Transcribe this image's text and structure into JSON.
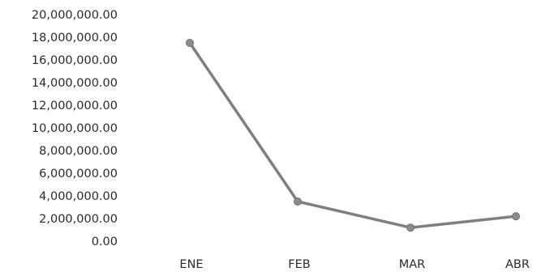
{
  "chart_data": {
    "type": "line",
    "categories": [
      "ENE",
      "FEB",
      "MAR",
      "ABR"
    ],
    "series": [
      {
        "values": [
          17500000,
          3500000,
          1200000,
          2200000
        ]
      }
    ],
    "y_tick_labels": [
      "20,000,000.00",
      "18,000,000.00",
      "16,000,000.00",
      "14,000,000.00",
      "12,000,000.00",
      "10,000,000.00",
      "8,000,000.00",
      "6,000,000.00",
      "4,000,000.00",
      "2,000,000.00",
      "0.00"
    ],
    "y_tick_values": [
      20000000,
      18000000,
      16000000,
      14000000,
      12000000,
      10000000,
      8000000,
      6000000,
      4000000,
      2000000,
      0
    ],
    "ylim": [
      0,
      20000000
    ],
    "grid": false,
    "legend": "none",
    "line_color": "#7f7f7f",
    "marker_color": "#8c8c8c",
    "title": "",
    "xlabel": "",
    "ylabel": ""
  }
}
